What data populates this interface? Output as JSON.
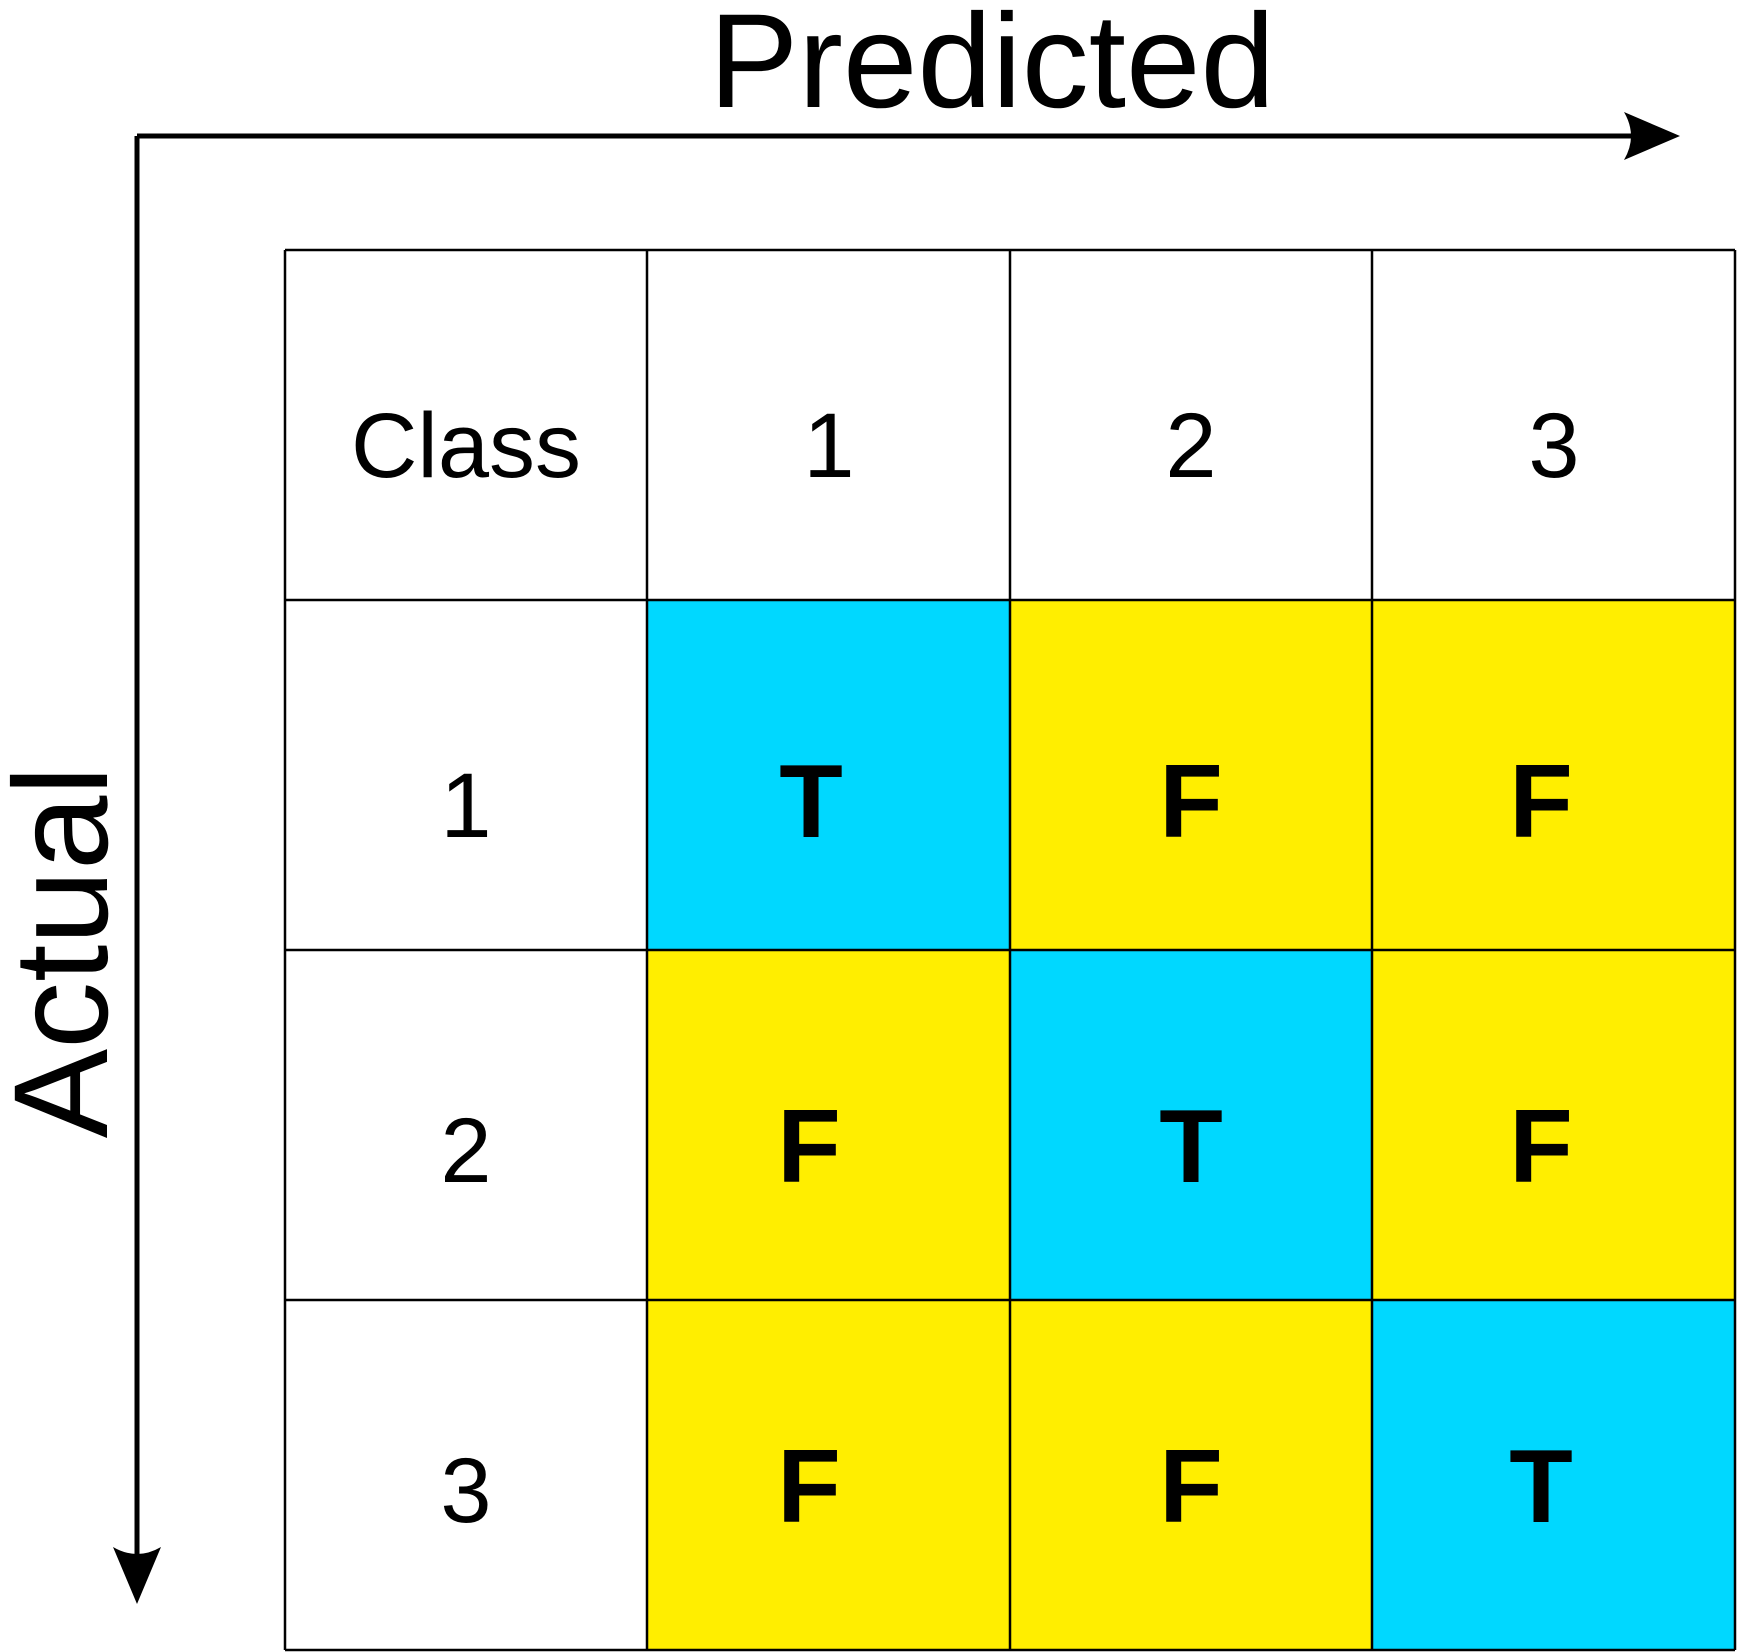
{
  "x_axis_label": "Predicted",
  "y_axis_label": "Actual",
  "corner_label": "Class",
  "predicted_classes": [
    "1",
    "2",
    "3"
  ],
  "actual_classes": [
    "1",
    "2",
    "3"
  ],
  "matrix": [
    [
      "T",
      "F",
      "F"
    ],
    [
      "F",
      "T",
      "F"
    ],
    [
      "F",
      "F",
      "T"
    ]
  ],
  "colors": {
    "true_cell": "#00D8FF",
    "false_cell": "#FFEE00",
    "header_cell": "#FFFFFF",
    "text": "#000000"
  }
}
